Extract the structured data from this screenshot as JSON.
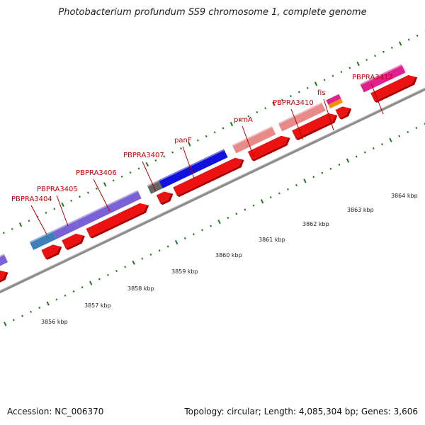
{
  "title": "Photobacterium profundum SS9 chromosome 1, complete genome",
  "footer": {
    "accession": "Accession: NC_006370",
    "summary": "Topology: circular; Length: 4,085,304 bp; Genes: 3,606"
  },
  "colors": {
    "backbone": "#8c8c8c",
    "tick": "#1e7a1e",
    "label": "#cc0000",
    "feature_red": "#ee1111",
    "feature_blue": "#1111dd",
    "feature_purple": "#7a62d6",
    "feature_steel": "#3f7fb8",
    "feature_pink": "#e88a8a",
    "feature_magenta": "#e0208c",
    "feature_orange": "#f29100",
    "feature_gray": "#666666"
  },
  "gene_labels": [
    {
      "text": "PBPRA3404"
    },
    {
      "text": "PBPRA3405"
    },
    {
      "text": "PBPRA3406"
    },
    {
      "text": "PBPRA3407"
    },
    {
      "text": "panF"
    },
    {
      "text": "prmA"
    },
    {
      "text": "PBPRA3410"
    },
    {
      "text": "fis"
    },
    {
      "text": "PBPRA3412"
    }
  ],
  "scale_labels": [
    "3856 kbp",
    "3857 kbp",
    "3858 kbp",
    "3859 kbp",
    "3860 kbp",
    "3861 kbp",
    "3862 kbp",
    "3863 kbp",
    "3864 kbp"
  ]
}
